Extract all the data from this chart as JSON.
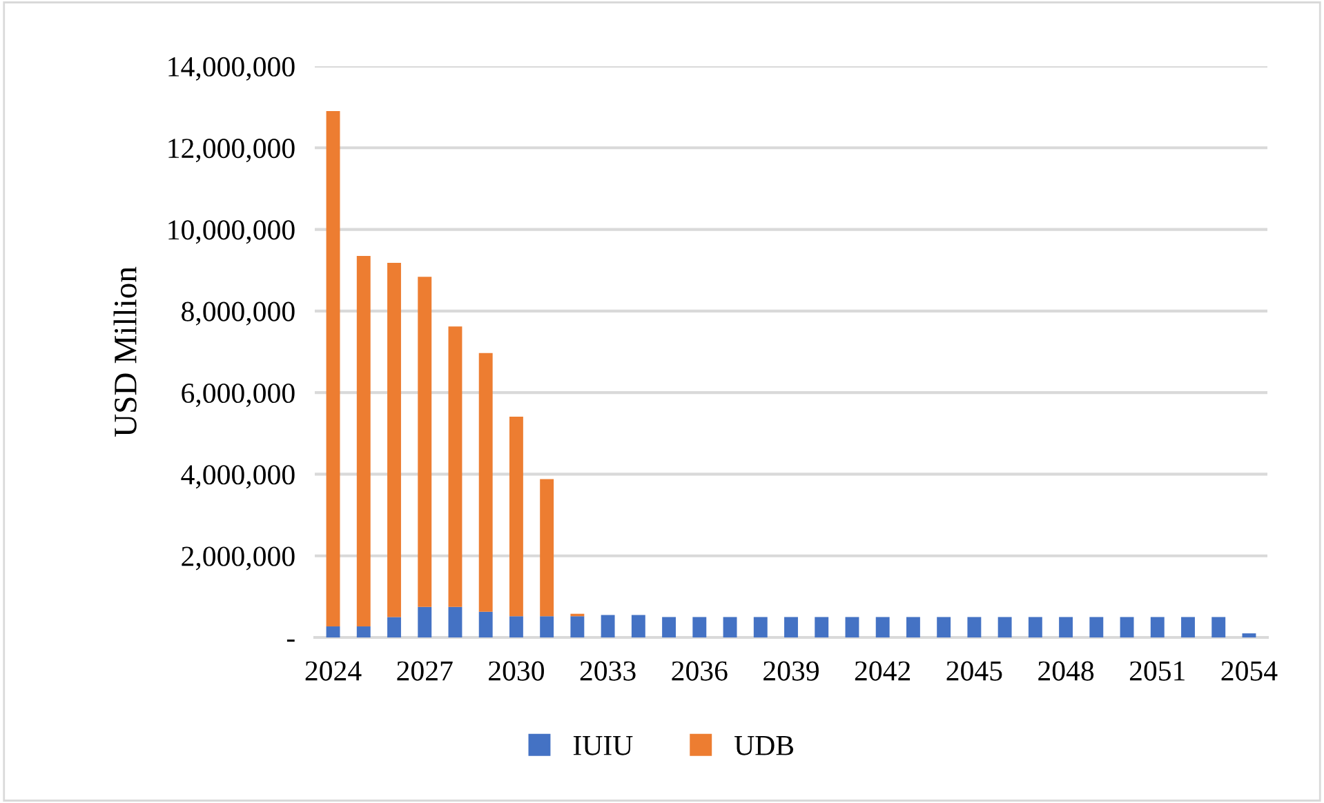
{
  "chart_data": {
    "type": "bar",
    "stacked": true,
    "ylabel": "USD Million",
    "categories": [
      "2024",
      null,
      null,
      "2027",
      null,
      null,
      "2030",
      null,
      null,
      "2033",
      null,
      null,
      "2036",
      null,
      null,
      "2039",
      null,
      null,
      "2042",
      null,
      null,
      "2045",
      null,
      null,
      "2048",
      null,
      null,
      "2051",
      null,
      null,
      "2054"
    ],
    "series": [
      {
        "name": "IUIU",
        "color": "#4472c4",
        "values": [
          270000,
          270000,
          500000,
          750000,
          750000,
          630000,
          520000,
          520000,
          520000,
          550000,
          550000,
          500000,
          500000,
          500000,
          500000,
          500000,
          500000,
          500000,
          500000,
          500000,
          500000,
          500000,
          500000,
          500000,
          500000,
          500000,
          500000,
          500000,
          500000,
          500000,
          100000
        ]
      },
      {
        "name": "UDB",
        "color": "#ed7d31",
        "values": [
          12630000,
          9080000,
          8680000,
          8090000,
          6870000,
          6340000,
          4890000,
          3360000,
          60000,
          0,
          0,
          0,
          0,
          0,
          0,
          0,
          0,
          0,
          0,
          0,
          0,
          0,
          0,
          0,
          0,
          0,
          0,
          0,
          0,
          0,
          0
        ]
      }
    ],
    "ylim": [
      0,
      14000000
    ],
    "yticks": [
      {
        "value": 0,
        "label": "-"
      },
      {
        "value": 2000000,
        "label": "2,000,000"
      },
      {
        "value": 4000000,
        "label": "4,000,000"
      },
      {
        "value": 6000000,
        "label": "6,000,000"
      },
      {
        "value": 8000000,
        "label": "8,000,000"
      },
      {
        "value": 10000000,
        "label": "10,000,000"
      },
      {
        "value": 12000000,
        "label": "12,000,000"
      },
      {
        "value": 14000000,
        "label": "14,000,000"
      }
    ],
    "grid": "y",
    "legend": "bottom"
  }
}
